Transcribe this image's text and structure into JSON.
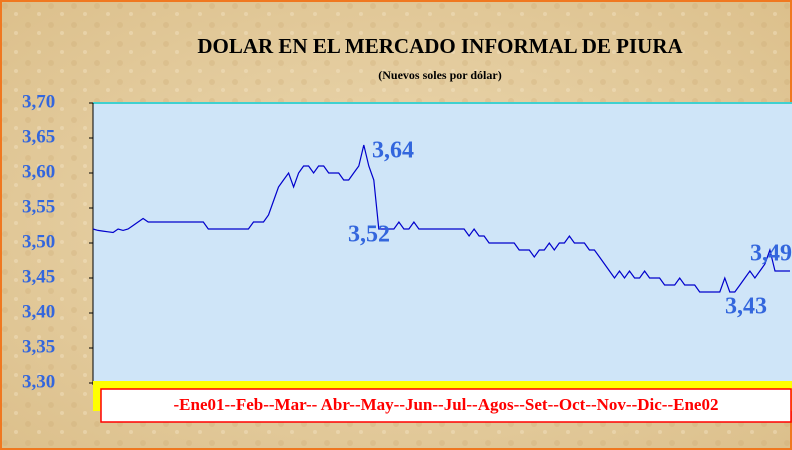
{
  "chart_data": {
    "type": "line",
    "title": "DOLAR EN EL MERCADO INFORMAL DE PIURA",
    "subtitle": "(Nuevos soles por dólar)",
    "x_axis_label": "-Ene01--Feb--Mar-- Abr--May--Jun--Jul--Agos--Set--Oct--Nov--Dic--Ene02",
    "color": "#0000cc",
    "values": [
      3.52,
      3.518,
      3.517,
      3.516,
      3.515,
      3.52,
      3.518,
      3.52,
      3.525,
      3.53,
      3.535,
      3.53,
      3.53,
      3.53,
      3.53,
      3.53,
      3.53,
      3.53,
      3.53,
      3.53,
      3.53,
      3.53,
      3.53,
      3.52,
      3.52,
      3.52,
      3.52,
      3.52,
      3.52,
      3.52,
      3.52,
      3.52,
      3.53,
      3.53,
      3.53,
      3.54,
      3.56,
      3.58,
      3.59,
      3.6,
      3.58,
      3.6,
      3.61,
      3.61,
      3.6,
      3.61,
      3.61,
      3.6,
      3.6,
      3.6,
      3.59,
      3.59,
      3.6,
      3.61,
      3.64,
      3.61,
      3.59,
      3.52,
      3.52,
      3.52,
      3.52,
      3.53,
      3.52,
      3.52,
      3.53,
      3.52,
      3.52,
      3.52,
      3.52,
      3.52,
      3.52,
      3.52,
      3.52,
      3.52,
      3.52,
      3.51,
      3.52,
      3.51,
      3.51,
      3.5,
      3.5,
      3.5,
      3.5,
      3.5,
      3.5,
      3.49,
      3.49,
      3.49,
      3.48,
      3.49,
      3.49,
      3.5,
      3.49,
      3.5,
      3.5,
      3.51,
      3.5,
      3.5,
      3.5,
      3.49,
      3.49,
      3.48,
      3.47,
      3.46,
      3.45,
      3.46,
      3.45,
      3.46,
      3.45,
      3.45,
      3.46,
      3.45,
      3.45,
      3.45,
      3.44,
      3.44,
      3.44,
      3.45,
      3.44,
      3.44,
      3.44,
      3.43,
      3.43,
      3.43,
      3.43,
      3.43,
      3.45,
      3.43,
      3.43,
      3.44,
      3.45,
      3.46,
      3.45,
      3.46,
      3.47,
      3.49,
      3.46,
      3.46,
      3.46,
      3.46
    ],
    "annotations": [
      {
        "label": "3,64",
        "value": 3.64
      },
      {
        "label": "3,52",
        "value": 3.52
      },
      {
        "label": "3,49",
        "value": 3.49
      },
      {
        "label": "3,43",
        "value": 3.43
      }
    ],
    "ylim": [
      3.3,
      3.7
    ],
    "yticks": [
      {
        "value": 3.3,
        "label": "3,30"
      },
      {
        "value": 3.35,
        "label": "3,35"
      },
      {
        "value": 3.4,
        "label": "3,40"
      },
      {
        "value": 3.45,
        "label": "3,45"
      },
      {
        "value": 3.5,
        "label": "3,50"
      },
      {
        "value": 3.55,
        "label": "3,55"
      },
      {
        "value": 3.6,
        "label": "3,60"
      },
      {
        "value": 3.65,
        "label": "3,65"
      },
      {
        "value": 3.7,
        "label": "3,70"
      }
    ]
  }
}
